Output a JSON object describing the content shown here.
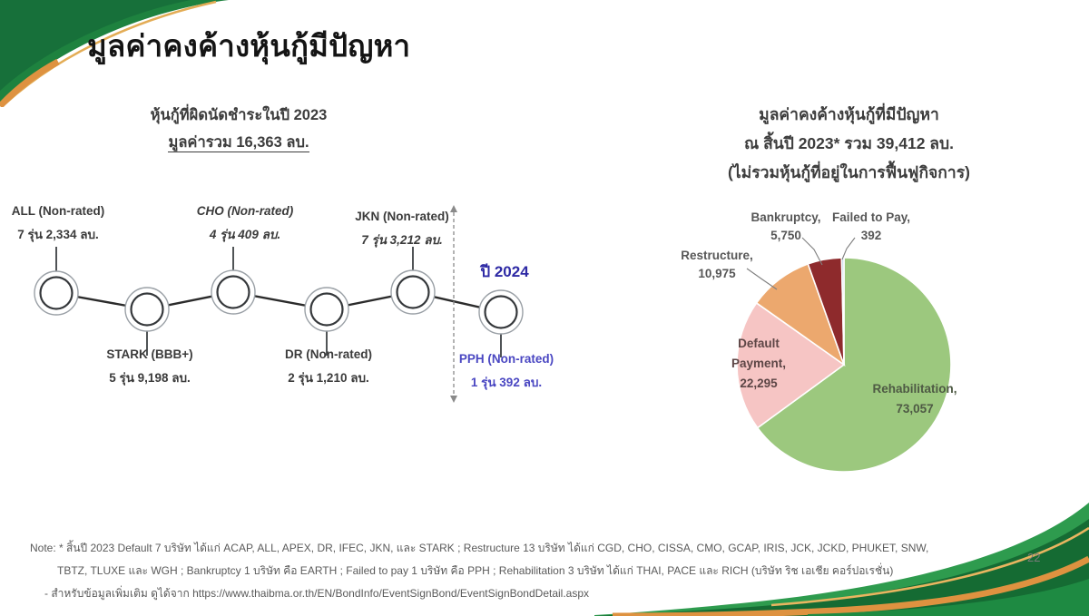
{
  "slide": {
    "title": "มูลค่าคงค้างหุ้นกู้มีปัญหา",
    "page_number": "22",
    "footnote_line1": "Note: * สิ้นปี 2023 Default 7 บริษัท ได้แก่ ACAP, ALL, APEX, DR, IFEC, JKN, และ STARK ; Restructure 13 บริษัท ได้แก่ CGD, CHO, CISSA, CMO, GCAP, IRIS, JCK, JCKD, PHUKET, SNW,",
    "footnote_line2": "TBTZ, TLUXE และ WGH ; Bankruptcy 1 บริษัท คือ EARTH ; Failed to pay 1 บริษัท คือ PPH ; Rehabilitation 3 บริษัท ได้แก่ THAI, PACE และ RICH (บริษัท ริช เอเชีย คอร์ปอเรชั่น)",
    "footnote_line3": "- สำหรับข้อมูลเพิ่มเติม ดูได้จาก https://www.thaibma.or.th/EN/BondInfo/EventSignBond/EventSignBondDetail.aspx"
  },
  "timeline": {
    "header_line1": "หุ้นกู้ที่ผิดนัดชำระในปี 2023",
    "header_line2": "มูลค่ารวม 16,363 ลบ.",
    "year_label": "ปี 2024",
    "events": [
      {
        "name": "ALL (Non-rated)",
        "detail": "7 รุ่น 2,334 ลบ."
      },
      {
        "name": "STARK (BBB+)",
        "detail": "5 รุ่น 9,198 ลบ."
      },
      {
        "name": "CHO (Non-rated)",
        "detail": "4 รุ่น 409 ลบ."
      },
      {
        "name": "DR (Non-rated)",
        "detail": "2 รุ่น 1,210 ลบ."
      },
      {
        "name": "JKN (Non-rated)",
        "detail": "7 รุ่น 3,212 ลบ."
      },
      {
        "name": "PPH (Non-rated)",
        "detail": "1 รุ่น 392 ลบ."
      }
    ]
  },
  "pie_section": {
    "header_line1": "มูลค่าคงค้างหุ้นกู้ที่มีปัญหา",
    "header_line2": "ณ สิ้นปี 2023* รวม 39,412 ลบ.",
    "header_line3": "(ไม่รวมหุ้นกู้ที่อยู่ในการฟื้นฟูกิจการ)"
  },
  "chart_data": {
    "type": "pie",
    "title": "มูลค่าคงค้างหุ้นกู้ที่มีปัญหา ณ สิ้นปี 2023* รวม 39,412 ลบ. (ไม่รวมหุ้นกู้ที่อยู่ในการฟื้นฟูกิจการ)",
    "categories": [
      "Rehabilitation",
      "Default Payment",
      "Restructure",
      "Bankruptcy",
      "Failed to Pay"
    ],
    "values": [
      73057,
      22295,
      10975,
      5750,
      392
    ],
    "colors": [
      "#9CC87E",
      "#F6C5C4",
      "#ECA86E",
      "#8E2A2C",
      "#BDD0E9"
    ],
    "start_angle_deg": -90,
    "direction": "clockwise",
    "legend": "none",
    "data_labels": {
      "rehabilitation": "Rehabilitation,\n73,057",
      "default_payment": "Default\nPayment,\n22,295",
      "restructure": "Restructure,\n10,975",
      "bankruptcy": "Bankruptcy,\n5,750",
      "failed_to_pay": "Failed to Pay,\n392"
    }
  }
}
